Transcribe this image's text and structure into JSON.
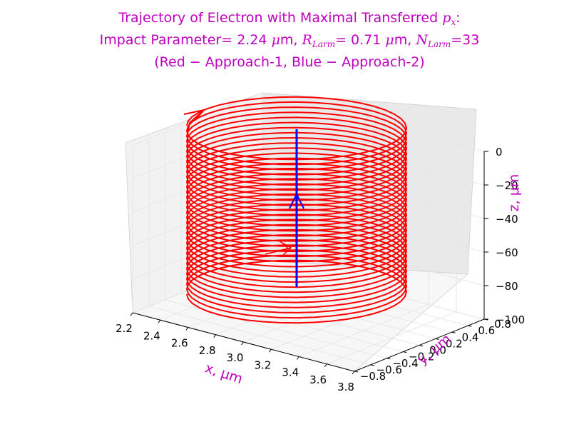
{
  "colors": {
    "title": "#bf00bf",
    "approach1": "#ff0000",
    "approach2": "#0000ff",
    "pane": "#f2f2f2",
    "grid": "#e5e5e5",
    "axis_text": "#000000",
    "label": "#bf00bf"
  },
  "chart_data": {
    "type": "line",
    "projection": "3d",
    "title": {
      "line1_text": "Trajectory of Electron with Maximal Transferred ",
      "line1_math": "p",
      "line1_math_sub": "x",
      "line1_suffix": ":",
      "line2_a": "Impact Parameter= 2.24 ",
      "line2_mu": "μ",
      "line2_b": "m, ",
      "line2_R": "R",
      "line2_R_sub": "Larm",
      "line2_c": "= 0.71 ",
      "line2_mu2": "μ",
      "line2_d": "m, ",
      "line2_N": "N",
      "line2_N_sub": "Larm",
      "line2_e": "=33",
      "line3": "(Red − Approach-1, Blue − Approach-2)"
    },
    "xlabel": "x, μm",
    "ylabel": "y, μm",
    "zlabel": "z, μm",
    "xlim": [
      2.2,
      3.8
    ],
    "ylim": [
      -0.8,
      0.8
    ],
    "zlim": [
      -100,
      0
    ],
    "xticks": [
      "2.2",
      "2.4",
      "2.6",
      "2.8",
      "3.0",
      "3.2",
      "3.4",
      "3.6",
      "3.8"
    ],
    "yticks": [
      "−0.8",
      "−0.6",
      "−0.4",
      "−0.2",
      "0.0",
      "0.2",
      "0.4",
      "0.6",
      "0.8"
    ],
    "zticks": [
      "−100",
      "−80",
      "−60",
      "−40",
      "−20",
      "0"
    ],
    "grid": true,
    "series": [
      {
        "color": "red",
        "kind": "helix",
        "center_x": 2.95,
        "center_y": 0.0,
        "radius": 0.71,
        "z_start": -100,
        "z_end": 0,
        "turns": 33
      },
      {
        "color": "blue",
        "kind": "line",
        "x": 2.95,
        "y": 0.0,
        "z_start": -100,
        "z_end": 0
      }
    ]
  }
}
